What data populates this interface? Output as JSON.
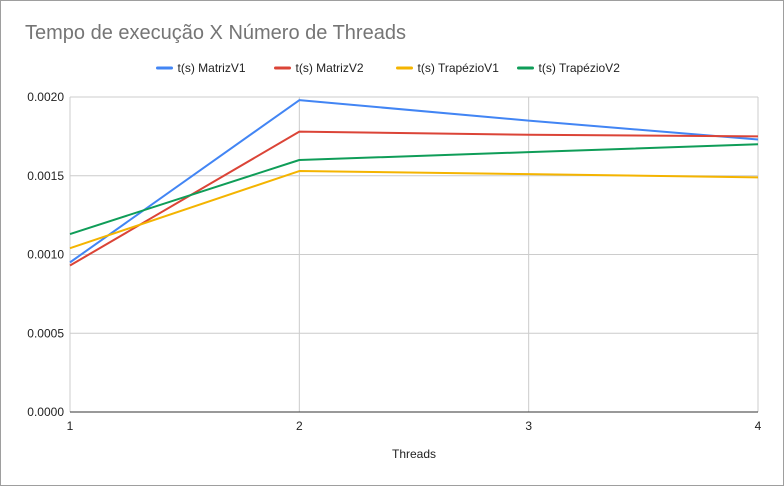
{
  "chart_data": {
    "type": "line",
    "title": "Tempo de execução X Número de Threads",
    "xlabel": "Threads",
    "ylabel": "",
    "x": [
      1,
      2,
      3,
      4
    ],
    "x_tick_labels": [
      "1",
      "2",
      "3",
      "4"
    ],
    "ylim": [
      0,
      0.002
    ],
    "y_ticks": [
      0,
      0.0005,
      0.001,
      0.0015,
      0.002
    ],
    "y_tick_labels": [
      "0.0000",
      "0.0005",
      "0.0010",
      "0.0015",
      "0.0020"
    ],
    "grid": true,
    "legend_position": "top",
    "series": [
      {
        "name": "t(s) MatrizV1",
        "color": "#4285f4",
        "values": [
          0.00095,
          0.00198,
          0.00185,
          0.00173
        ]
      },
      {
        "name": "t(s) MatrizV2",
        "color": "#db4437",
        "values": [
          0.00093,
          0.00178,
          0.00176,
          0.00175
        ]
      },
      {
        "name": "t(s) TrapézioV1",
        "color": "#f4b400",
        "values": [
          0.00104,
          0.00153,
          0.00151,
          0.00149
        ]
      },
      {
        "name": "t(s) TrapézioV2",
        "color": "#0f9d58",
        "values": [
          0.00113,
          0.0016,
          0.00165,
          0.0017
        ]
      }
    ]
  }
}
